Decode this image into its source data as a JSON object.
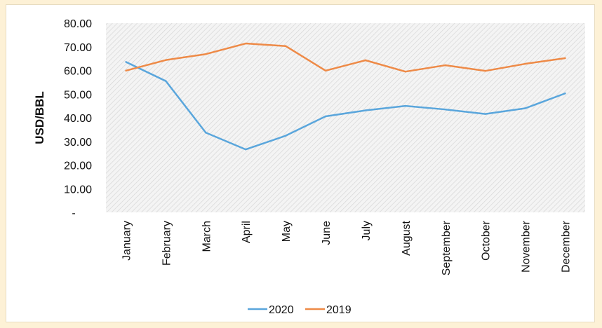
{
  "chart_data": {
    "type": "line",
    "ylabel": "USD/BBL",
    "ylim": [
      0,
      80
    ],
    "y_ticks": [
      "-",
      "10.00",
      "20.00",
      "30.00",
      "40.00",
      "50.00",
      "60.00",
      "70.00",
      "80.00"
    ],
    "y_tick_values": [
      0,
      10,
      20,
      30,
      40,
      50,
      60,
      70,
      80
    ],
    "categories": [
      "January",
      "February",
      "March",
      "April",
      "May",
      "June",
      "July",
      "August",
      "September",
      "October",
      "November",
      "December"
    ],
    "series": [
      {
        "name": "2020",
        "color": "#5aa6dc",
        "values": [
          63.6,
          55.5,
          33.7,
          26.6,
          32.4,
          40.6,
          43.1,
          45.0,
          43.5,
          41.6,
          44.0,
          50.3
        ]
      },
      {
        "name": "2019",
        "color": "#ee8a47",
        "values": [
          59.9,
          64.4,
          66.9,
          71.4,
          70.3,
          59.9,
          64.3,
          59.5,
          62.2,
          59.8,
          62.8,
          65.2
        ]
      }
    ],
    "grid": "hatched background",
    "legend": "bottom-center"
  }
}
